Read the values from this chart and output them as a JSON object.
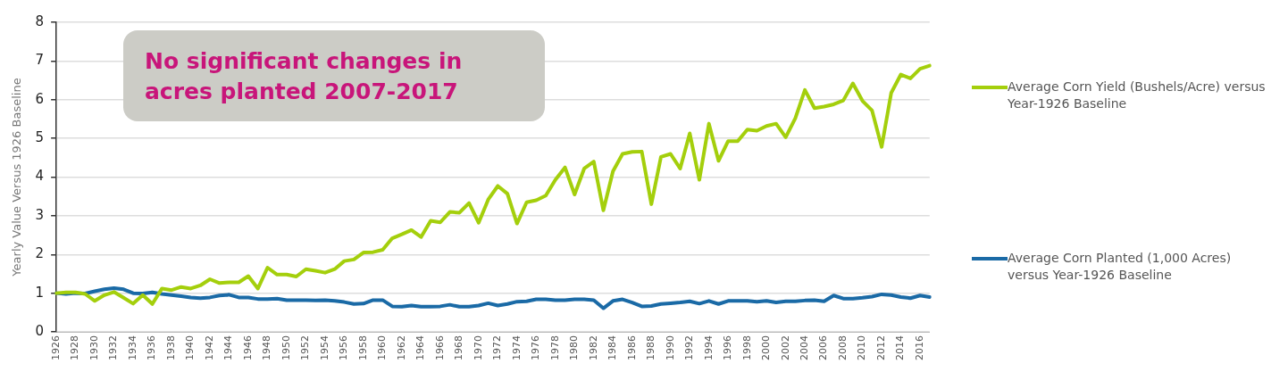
{
  "chart_data": {
    "type": "line",
    "ylabel": "Yearly Value Versus 1926 Baseline",
    "annotations": [
      "No significant changes in acres planted 2007-2017"
    ],
    "categories": [
      "1926",
      null,
      "1928",
      null,
      "1930",
      null,
      "1932",
      null,
      "1934",
      null,
      "1936",
      null,
      "1938",
      null,
      "1940",
      null,
      "1942",
      null,
      "1944",
      null,
      "1946",
      null,
      "1948",
      null,
      "1950",
      null,
      "1952",
      null,
      "1954",
      null,
      "1956",
      null,
      "1958",
      null,
      "1960",
      null,
      "1962",
      null,
      "1964",
      null,
      "1966",
      null,
      "1968",
      null,
      "1970",
      null,
      "1972",
      null,
      "1974",
      null,
      "1976",
      null,
      "1978",
      null,
      "1980",
      null,
      "1982",
      null,
      "1984",
      null,
      "1986",
      null,
      "1988",
      null,
      "1990",
      null,
      "1992",
      null,
      "1994",
      null,
      "1996",
      null,
      "1998",
      null,
      "2000",
      null,
      "2002",
      null,
      "2004",
      null,
      "2006",
      null,
      "2008",
      null,
      "2010",
      null,
      "2012",
      null,
      "2014",
      null,
      "2016",
      null
    ],
    "ylim": [
      0,
      8
    ],
    "yticks": [
      0,
      1,
      2,
      3,
      4,
      5,
      6,
      7,
      8
    ],
    "grid": "y",
    "legend": "right",
    "marker": "none",
    "line_style": "solid",
    "series": [
      {
        "name": "Average Corn Yield (Bushels/Acre) versus Year-1926 Baseline",
        "color": "#a4cf0c",
        "values": [
          1.0,
          1.02,
          1.02,
          0.98,
          0.8,
          0.95,
          1.03,
          0.88,
          0.73,
          0.95,
          0.72,
          1.12,
          1.08,
          1.16,
          1.12,
          1.2,
          1.36,
          1.26,
          1.28,
          1.28,
          1.44,
          1.12,
          1.66,
          1.48,
          1.48,
          1.43,
          1.62,
          1.58,
          1.53,
          1.62,
          1.83,
          1.87,
          2.05,
          2.06,
          2.12,
          2.42,
          2.52,
          2.63,
          2.45,
          2.87,
          2.83,
          3.1,
          3.08,
          3.33,
          2.82,
          3.42,
          3.77,
          3.57,
          2.8,
          3.35,
          3.4,
          3.52,
          3.93,
          4.25,
          3.55,
          4.22,
          4.4,
          3.14,
          4.15,
          4.6,
          4.65,
          4.66,
          3.3,
          4.52,
          4.6,
          4.22,
          5.13,
          3.93,
          5.38,
          4.42,
          4.93,
          4.93,
          5.23,
          5.2,
          5.32,
          5.38,
          5.03,
          5.52,
          6.25,
          5.78,
          5.82,
          5.88,
          5.98,
          6.42,
          5.97,
          5.72,
          4.78,
          6.18,
          6.65,
          6.55,
          6.8,
          6.88
        ]
      },
      {
        "name": "Average Corn Planted (1,000 Acres) versus Year-1926 Baseline",
        "color": "#1a6aa6",
        "values": [
          1.0,
          0.98,
          1.0,
          0.99,
          1.05,
          1.1,
          1.13,
          1.1,
          1.0,
          0.99,
          1.02,
          0.98,
          0.95,
          0.92,
          0.89,
          0.87,
          0.89,
          0.94,
          0.96,
          0.89,
          0.89,
          0.85,
          0.85,
          0.86,
          0.82,
          0.82,
          0.82,
          0.81,
          0.82,
          0.8,
          0.77,
          0.72,
          0.73,
          0.82,
          0.82,
          0.66,
          0.65,
          0.68,
          0.65,
          0.65,
          0.66,
          0.7,
          0.65,
          0.65,
          0.68,
          0.74,
          0.68,
          0.72,
          0.78,
          0.79,
          0.84,
          0.84,
          0.82,
          0.82,
          0.84,
          0.84,
          0.82,
          0.61,
          0.8,
          0.84,
          0.76,
          0.66,
          0.67,
          0.72,
          0.74,
          0.76,
          0.79,
          0.73,
          0.8,
          0.72,
          0.8,
          0.8,
          0.8,
          0.78,
          0.8,
          0.76,
          0.79,
          0.79,
          0.81,
          0.82,
          0.79,
          0.94,
          0.86,
          0.86,
          0.88,
          0.91,
          0.97,
          0.95,
          0.9,
          0.87,
          0.94,
          0.9
        ]
      }
    ]
  }
}
